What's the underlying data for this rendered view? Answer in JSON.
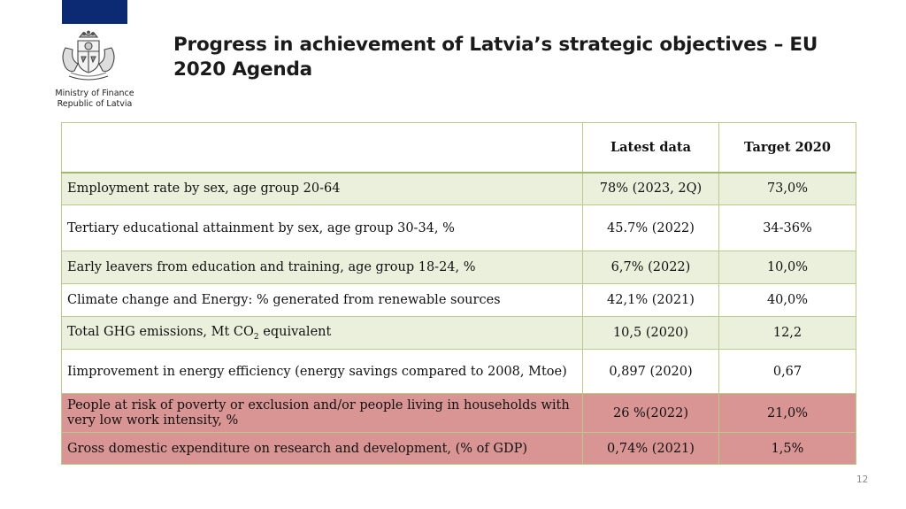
{
  "header": {
    "ministry_line1": "Ministry of Finance",
    "ministry_line2": "Republic of Latvia",
    "title": "Progress in achievement of Latvia’s strategic objectives – EU 2020 Agenda"
  },
  "table": {
    "columns": [
      "",
      "Latest data",
      "Target 2020"
    ],
    "rows": [
      {
        "indicator": "Employment rate by sex, age group 20-64",
        "latest": "78% (2023, 2Q)",
        "target": "73,0%"
      },
      {
        "indicator": "Tertiary educational attainment by sex, age group 30-34, %",
        "latest": "45.7% (2022)",
        "target": "34-36%"
      },
      {
        "indicator": "Early leavers from education and training, age group 18-24, %",
        "latest": "6,7% (2022)",
        "target": "10,0%"
      },
      {
        "indicator": "Climate change and Energy: % generated from renewable sources",
        "latest": "42,1% (2021)",
        "target": "40,0%"
      },
      {
        "indicator_pre": "Total GHG emissions, Mt CO",
        "indicator_sub": "2",
        "indicator_post": " equivalent",
        "latest": "10,5 (2020)",
        "target": "12,2"
      },
      {
        "indicator": "Iimprovement in energy efficiency (energy savings compared to 2008, Mtoe)",
        "latest": "0,897 (2020)",
        "target": "0,67"
      },
      {
        "indicator": "People at risk of poverty or exclusion and/or people living in households with very low work intensity, %",
        "latest": "26 %(2022)",
        "target": "21,0%"
      },
      {
        "indicator": "Gross domestic expenditure on research and development, (% of GDP)",
        "latest": "0,74% (2021)",
        "target": "1,5%"
      }
    ]
  },
  "colors": {
    "flag_blue": "#0b2a73",
    "row_green": "#eaf0dc",
    "row_red": "#d99594",
    "table_border": "#b8cc8a"
  },
  "footer": {
    "page_number": "12"
  }
}
